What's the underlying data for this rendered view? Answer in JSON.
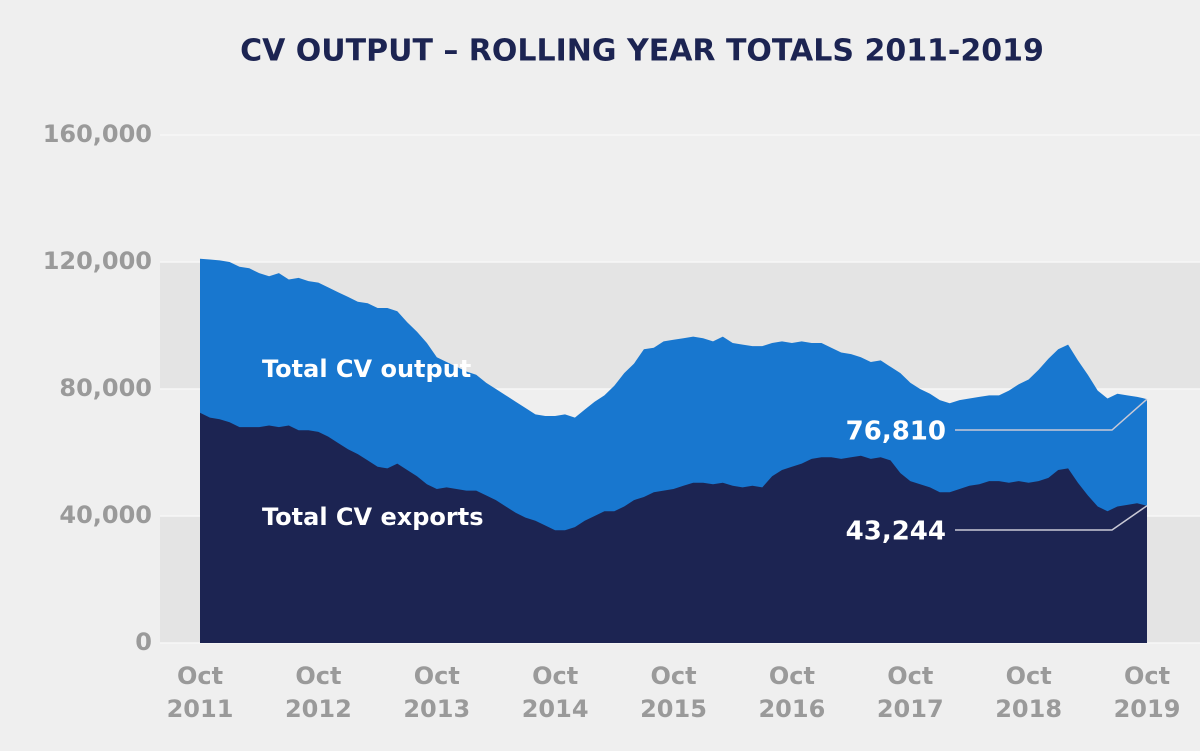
{
  "chart_data": {
    "type": "area",
    "title": "CV OUTPUT – ROLLING YEAR TOTALS 2011-2019",
    "categories": [
      "Oct 2011",
      null,
      null,
      null,
      null,
      null,
      null,
      null,
      null,
      null,
      null,
      null,
      "Oct 2012",
      null,
      null,
      null,
      null,
      null,
      null,
      null,
      null,
      null,
      null,
      null,
      "Oct 2013",
      null,
      null,
      null,
      null,
      null,
      null,
      null,
      null,
      null,
      null,
      null,
      "Oct 2014",
      null,
      null,
      null,
      null,
      null,
      null,
      null,
      null,
      null,
      null,
      null,
      "Oct 2015",
      null,
      null,
      null,
      null,
      null,
      null,
      null,
      null,
      null,
      null,
      null,
      "Oct 2016",
      null,
      null,
      null,
      null,
      null,
      null,
      null,
      null,
      null,
      null,
      null,
      "Oct 2017",
      null,
      null,
      null,
      null,
      null,
      null,
      null,
      null,
      null,
      null,
      null,
      "Oct 2018",
      null,
      null,
      null,
      null,
      null,
      null,
      null,
      null,
      null,
      null,
      null,
      "Oct 2019"
    ],
    "series": [
      {
        "name": "Total CV output",
        "color": "#1877cf",
        "values": [
          121000,
          120800,
          120500,
          120000,
          118500,
          118000,
          116500,
          115500,
          116500,
          114500,
          115000,
          114000,
          113500,
          112000,
          110500,
          109000,
          107500,
          107000,
          105500,
          105500,
          104500,
          101000,
          98000,
          94500,
          90000,
          88500,
          87000,
          85500,
          84500,
          82000,
          80000,
          78000,
          76000,
          74000,
          72000,
          71500,
          71500,
          72000,
          71000,
          73500,
          76000,
          78000,
          81000,
          85000,
          88000,
          92500,
          93000,
          95000,
          95500,
          96000,
          96500,
          96000,
          95000,
          96500,
          94500,
          94000,
          93500,
          93500,
          94500,
          95000,
          94500,
          95000,
          94500,
          94500,
          93000,
          91500,
          91000,
          90000,
          88500,
          89000,
          87000,
          85000,
          82000,
          80000,
          78500,
          76500,
          75500,
          76500,
          77000,
          77500,
          78000,
          78000,
          79500,
          81500,
          83000,
          86000,
          89500,
          92500,
          94000,
          89000,
          84500,
          79500,
          77000,
          78500,
          78000,
          77500,
          76810
        ],
        "value_labels": [
          null,
          null,
          null,
          null,
          null,
          null,
          null,
          null,
          null,
          null,
          null,
          null,
          null,
          null,
          null,
          null,
          null,
          null,
          null,
          null,
          null,
          null,
          null,
          null,
          null,
          null,
          null,
          null,
          null,
          null,
          null,
          null,
          null,
          null,
          null,
          null,
          null,
          null,
          null,
          null,
          null,
          null,
          null,
          null,
          null,
          null,
          null,
          null,
          null,
          null,
          null,
          null,
          null,
          null,
          null,
          null,
          null,
          null,
          null,
          null,
          null,
          null,
          null,
          null,
          null,
          null,
          null,
          null,
          null,
          null,
          null,
          null,
          null,
          null,
          null,
          null,
          null,
          null,
          null,
          null,
          null,
          null,
          null,
          null,
          null,
          null,
          null,
          null,
          null,
          null,
          null,
          null,
          null,
          null,
          null,
          null,
          "76,810"
        ]
      },
      {
        "name": "Total CV exports",
        "color": "#1c2452",
        "values": [
          72500,
          71000,
          70500,
          69500,
          68000,
          68000,
          68000,
          68500,
          68000,
          68500,
          67000,
          67000,
          66500,
          65000,
          63000,
          61000,
          59500,
          57500,
          55500,
          55000,
          56500,
          54500,
          52500,
          50000,
          48500,
          49000,
          48500,
          48000,
          48000,
          46500,
          45000,
          43000,
          41000,
          39500,
          38500,
          37000,
          35500,
          35500,
          36500,
          38500,
          40000,
          41500,
          41500,
          43000,
          45000,
          46000,
          47500,
          48000,
          48500,
          49500,
          50500,
          50500,
          50000,
          50500,
          49500,
          49000,
          49500,
          49000,
          52500,
          54500,
          55500,
          56500,
          58000,
          58500,
          58500,
          58000,
          58500,
          59000,
          58000,
          58500,
          57500,
          53500,
          51000,
          50000,
          49000,
          47500,
          47500,
          48500,
          49500,
          50000,
          51000,
          51000,
          50500,
          51000,
          50500,
          51000,
          52000,
          54500,
          55000,
          50500,
          46500,
          43000,
          41500,
          43000,
          43500,
          44000,
          43244
        ],
        "value_labels": [
          null,
          null,
          null,
          null,
          null,
          null,
          null,
          null,
          null,
          null,
          null,
          null,
          null,
          null,
          null,
          null,
          null,
          null,
          null,
          null,
          null,
          null,
          null,
          null,
          null,
          null,
          null,
          null,
          null,
          null,
          null,
          null,
          null,
          null,
          null,
          null,
          null,
          null,
          null,
          null,
          null,
          null,
          null,
          null,
          null,
          null,
          null,
          null,
          null,
          null,
          null,
          null,
          null,
          null,
          null,
          null,
          null,
          null,
          null,
          null,
          null,
          null,
          null,
          null,
          null,
          null,
          null,
          null,
          null,
          null,
          null,
          null,
          null,
          null,
          null,
          null,
          null,
          null,
          null,
          null,
          null,
          null,
          null,
          null,
          null,
          null,
          null,
          null,
          null,
          null,
          null,
          null,
          null,
          null,
          null,
          null,
          "43,244"
        ]
      }
    ],
    "ylim": [
      0,
      160000
    ],
    "yticks": [
      {
        "value": 0,
        "label": "0"
      },
      {
        "value": 40000,
        "label": "40,000"
      },
      {
        "value": 80000,
        "label": "80,000"
      },
      {
        "value": 120000,
        "label": "120,000"
      },
      {
        "value": 160000,
        "label": "160,000"
      }
    ],
    "grid": true
  }
}
